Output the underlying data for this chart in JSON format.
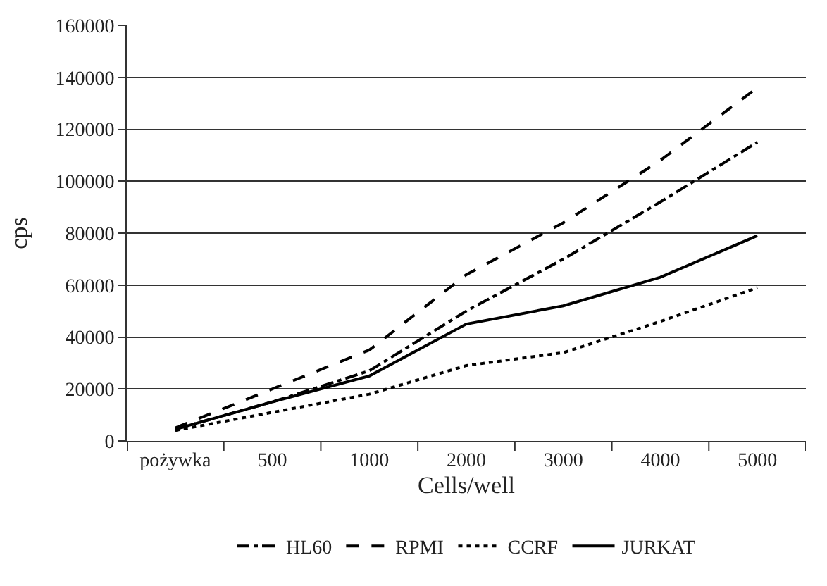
{
  "chart_data": {
    "type": "line",
    "xlabel": "Cells/well",
    "ylabel": "cps",
    "categories": [
      "pożywka",
      "500",
      "1000",
      "2000",
      "3000",
      "4000",
      "5000"
    ],
    "series": [
      {
        "name": "HL60",
        "color": "#000000",
        "line_style": "dashdot",
        "values": [
          4500,
          15000,
          27000,
          50000,
          70000,
          92000,
          115000
        ]
      },
      {
        "name": "RPMI",
        "color": "#000000",
        "line_style": "dashed",
        "values": [
          5000,
          20000,
          35000,
          64000,
          84000,
          108000,
          136000
        ]
      },
      {
        "name": "CCRF",
        "color": "#000000",
        "line_style": "dotted",
        "values": [
          4000,
          11000,
          18000,
          29000,
          34000,
          46000,
          59000
        ]
      },
      {
        "name": "JURKAT",
        "color": "#000000",
        "line_style": "solid",
        "values": [
          4500,
          15000,
          25000,
          45000,
          52000,
          63000,
          79000
        ]
      }
    ],
    "ylim": [
      0,
      160000
    ],
    "yticks": [
      0,
      20000,
      40000,
      60000,
      80000,
      100000,
      120000,
      140000,
      160000
    ],
    "grid": "y",
    "legend": "bottom",
    "marker": "none"
  }
}
